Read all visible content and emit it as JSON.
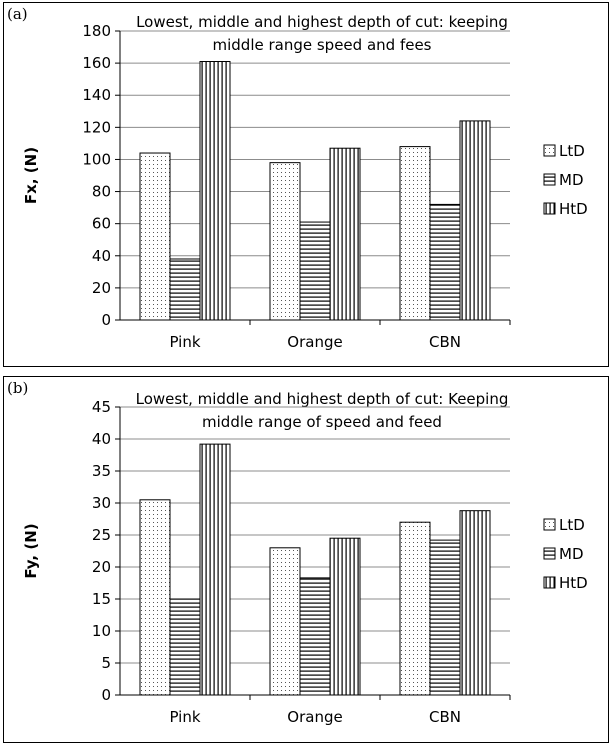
{
  "panels": [
    {
      "label": "(a)"
    },
    {
      "label": "(b)"
    }
  ],
  "chart_data": [
    {
      "type": "bar",
      "title_lines": [
        "Lowest, middle and highest depth of cut: keeping",
        "middle range speed and fees"
      ],
      "ylabel": "Fx, (N)",
      "xlabel": "",
      "categories": [
        "Pink",
        "Orange",
        "CBN"
      ],
      "ylim": [
        0,
        180
      ],
      "yticks": [
        "0",
        "20",
        "40",
        "60",
        "80",
        "100",
        "120",
        "140",
        "160",
        "180"
      ],
      "grid": true,
      "legend_position": "right",
      "series": [
        {
          "name": "LtD",
          "pattern": "dots",
          "values": [
            104,
            98,
            108
          ]
        },
        {
          "name": "MD",
          "pattern": "horizontal-lines",
          "values": [
            38,
            61,
            72
          ]
        },
        {
          "name": "HtD",
          "pattern": "vertical-lines",
          "values": [
            161,
            107,
            124
          ]
        }
      ]
    },
    {
      "type": "bar",
      "title_lines": [
        "Lowest, middle and highest depth of cut: Keeping",
        "middle range of speed and feed"
      ],
      "ylabel": "Fy, (N)",
      "xlabel": "",
      "categories": [
        "Pink",
        "Orange",
        "CBN"
      ],
      "ylim": [
        0,
        45
      ],
      "yticks": [
        "0",
        "5",
        "10",
        "15",
        "20",
        "25",
        "30",
        "35",
        "40",
        "45"
      ],
      "grid": true,
      "legend_position": "right",
      "series": [
        {
          "name": "LtD",
          "pattern": "dots",
          "values": [
            30.5,
            23,
            27
          ]
        },
        {
          "name": "MD",
          "pattern": "horizontal-lines",
          "values": [
            15,
            18.3,
            24.2
          ]
        },
        {
          "name": "HtD",
          "pattern": "vertical-lines",
          "values": [
            39.2,
            24.5,
            28.8
          ]
        }
      ]
    }
  ]
}
